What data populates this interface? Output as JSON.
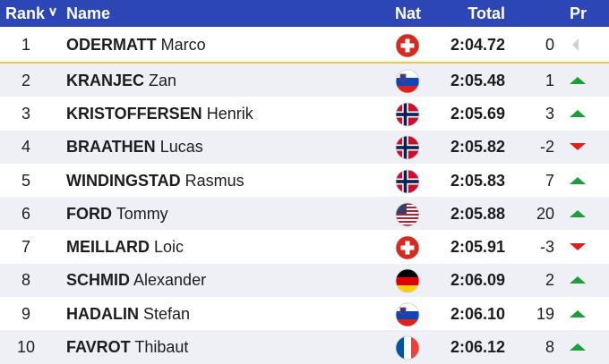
{
  "header": {
    "columns": [
      "Rank",
      "Name",
      "Nat",
      "Total",
      "Pr"
    ]
  },
  "table": {
    "rows": [
      [
        1,
        "ODERMATT",
        "Marco",
        "2:04.72",
        0
      ],
      [
        2,
        "KRANJEC",
        "Zan",
        "2:05.48",
        1
      ],
      [
        3,
        "KRISTOFFERSEN",
        "Henrik",
        "2:05.69",
        3
      ],
      [
        4,
        "BRAATHEN",
        "Lucas",
        "2:05.82",
        -2
      ],
      [
        5,
        "WINDINGSTAD",
        "Rasmus",
        "2:05.83",
        7
      ],
      [
        6,
        "FORD",
        "Tommy",
        "2:05.88",
        20
      ],
      [
        7,
        "MEILLARD",
        "Loic",
        "2:05.91",
        -3
      ],
      [
        8,
        "SCHMID",
        "Alexander",
        "2:06.09",
        2
      ],
      [
        9,
        "HADALIN",
        "Stefan",
        "2:06.10",
        19
      ],
      [
        10,
        "FAVROT",
        "Thibaut",
        "2:06.12",
        8
      ]
    ]
  }
}
